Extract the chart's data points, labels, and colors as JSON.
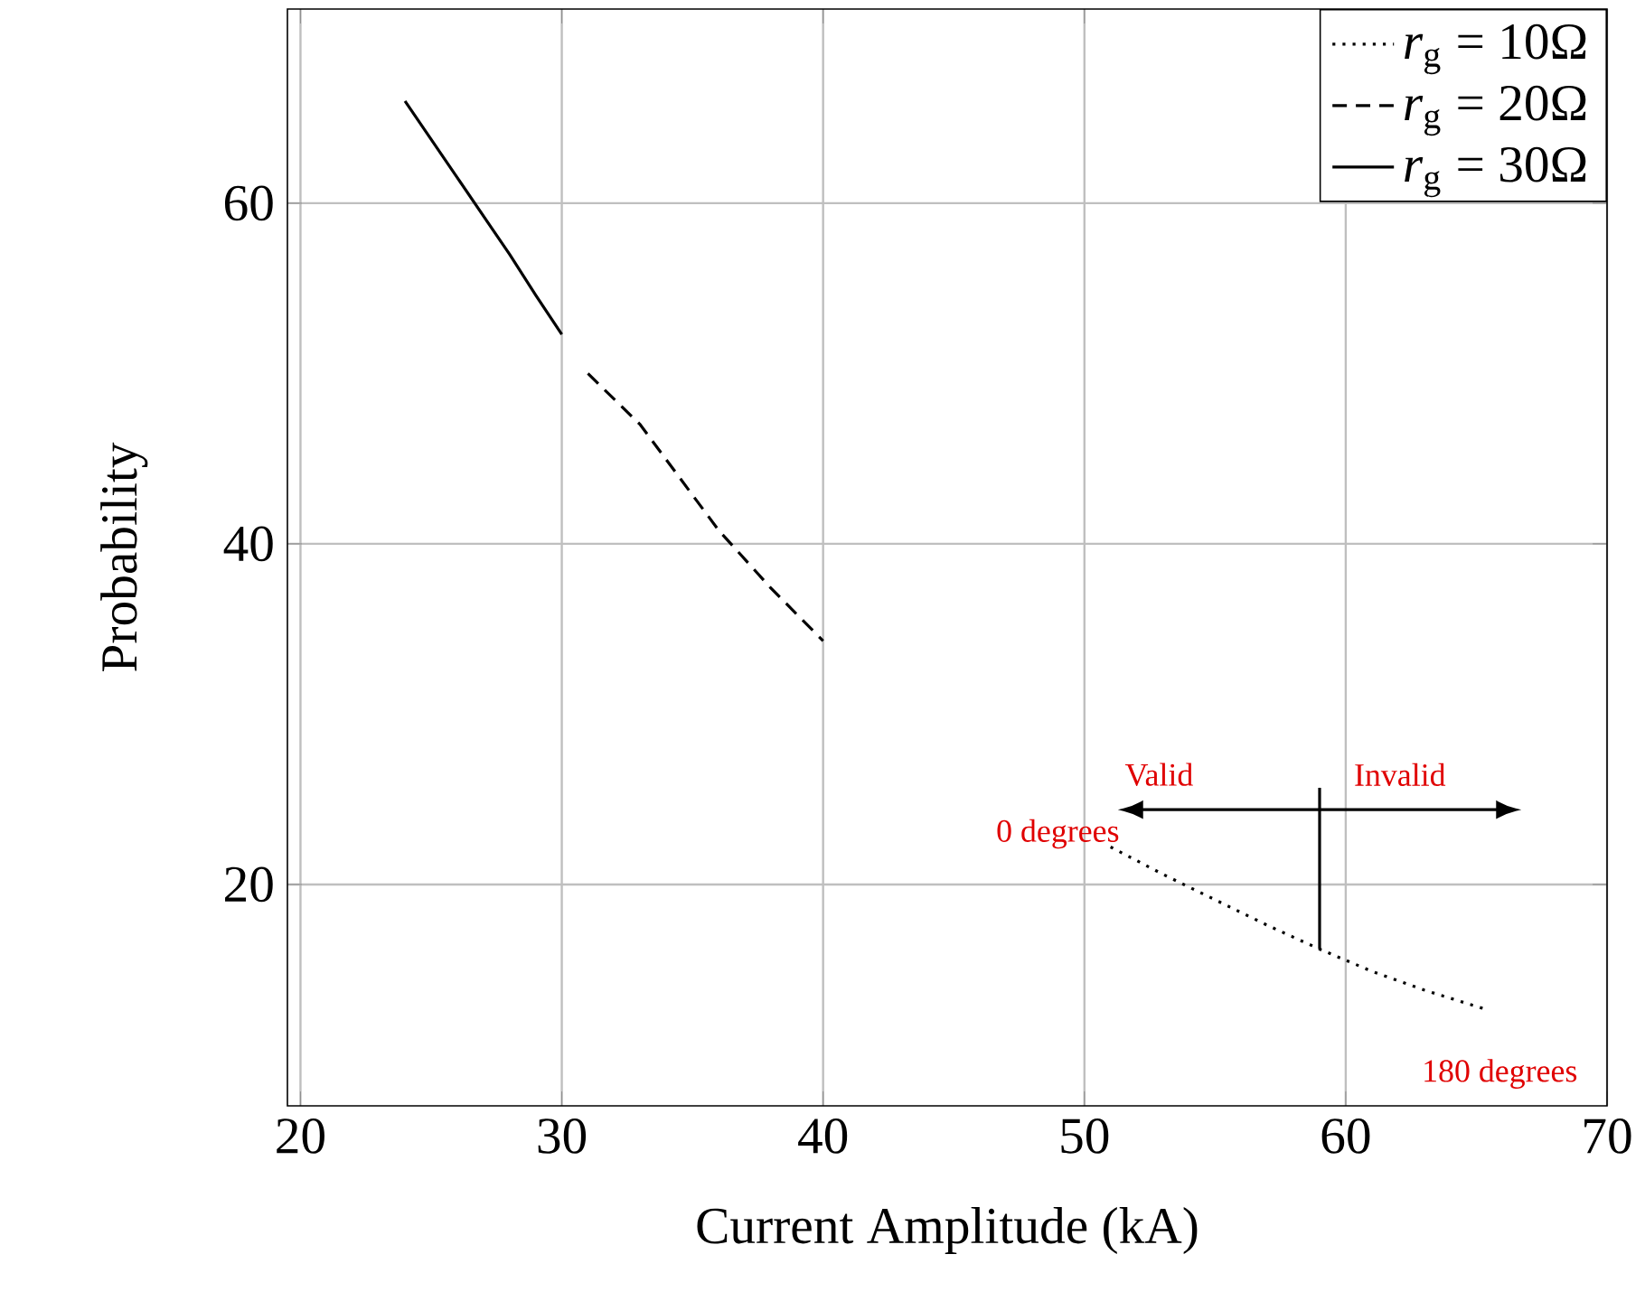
{
  "chart_data": {
    "type": "line",
    "xlabel": "Current Amplitude (kA)",
    "ylabel": "Probability",
    "xlim": [
      19.5,
      70
    ],
    "ylim": [
      7,
      71.4
    ],
    "xticks": [
      20,
      30,
      40,
      50,
      60,
      70
    ],
    "yticks": [
      20,
      40,
      60
    ],
    "grid": true,
    "legend": "top right",
    "marker": "none",
    "series": [
      {
        "name": "*r*$_{g}$ = 10Ω",
        "color": "#000000",
        "line_style": "dotted",
        "x": [
          51,
          53,
          55,
          57,
          59,
          61,
          63,
          65.5
        ],
        "values": [
          22.2,
          20.6,
          19.1,
          17.6,
          16.2,
          14.9,
          13.8,
          12.6
        ]
      },
      {
        "name": "*r*$_{g}$ = 20Ω",
        "color": "#000000",
        "line_style": "dashed",
        "x": [
          31,
          33,
          36,
          38,
          40
        ],
        "values": [
          50.0,
          47.0,
          40.8,
          37.4,
          34.3
        ]
      },
      {
        "name": "*r*$_{g}$ = 30Ω",
        "color": "#000000",
        "line_style": "solid",
        "x": [
          24,
          26,
          28,
          29,
          30
        ],
        "values": [
          66.0,
          61.5,
          57.0,
          54.6,
          52.3
        ]
      }
    ],
    "annotations": [
      {
        "text": "0 degrees",
        "x": 51,
        "y": 22.2
      },
      {
        "text": "180 degrees",
        "x": 65.5,
        "y": 12.6
      },
      "Valid",
      {
        "text": "Invalid",
        "x": 59,
        "y": 16.2
      }
    ]
  }
}
